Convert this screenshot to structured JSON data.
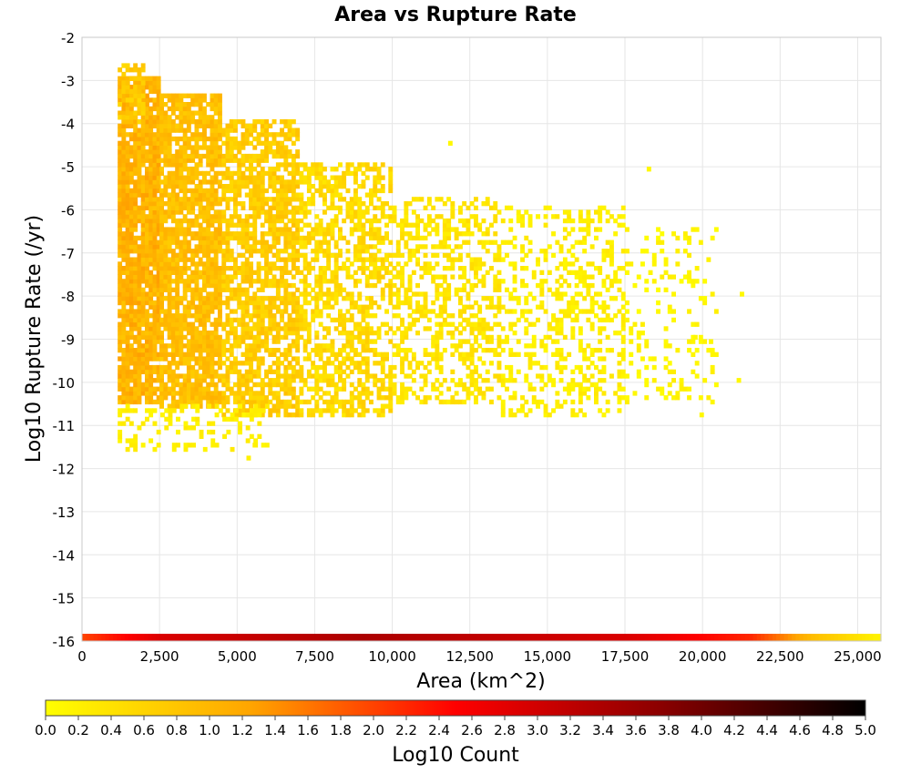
{
  "chart_data": {
    "type": "heatmap",
    "title": "Area vs Rupture Rate",
    "xlabel": "Area (km^2)",
    "ylabel": "Log10 Rupture Rate (/yr)",
    "xlim": [
      0,
      25750
    ],
    "ylim": [
      -16,
      -2
    ],
    "x_ticks": [
      "0",
      "2,500",
      "5,000",
      "7,500",
      "10,000",
      "12,500",
      "15,000",
      "17,500",
      "20,000",
      "22,500",
      "25,000"
    ],
    "x_tick_values": [
      0,
      2500,
      5000,
      7500,
      10000,
      12500,
      15000,
      17500,
      20000,
      22500,
      25000
    ],
    "y_ticks": [
      "-2",
      "-3",
      "-4",
      "-5",
      "-6",
      "-7",
      "-8",
      "-9",
      "-10",
      "-11",
      "-12",
      "-13",
      "-14",
      "-15",
      "-16"
    ],
    "y_tick_values": [
      -2,
      -3,
      -4,
      -5,
      -6,
      -7,
      -8,
      -9,
      -10,
      -11,
      -12,
      -13,
      -14,
      -15,
      -16
    ],
    "grid": true,
    "colorbar": {
      "label": "Log10 Count",
      "range": [
        0.0,
        5.0
      ],
      "ticks": [
        "0.0",
        "0.2",
        "0.4",
        "0.6",
        "0.8",
        "1.0",
        "1.2",
        "1.4",
        "1.6",
        "1.8",
        "2.0",
        "2.2",
        "2.4",
        "2.6",
        "2.8",
        "3.0",
        "3.2",
        "3.4",
        "3.6",
        "3.8",
        "4.0",
        "4.2",
        "4.4",
        "4.6",
        "4.8",
        "5.0"
      ],
      "colors": [
        "#ffff00",
        "#ffa500",
        "#ff0000",
        "#8b0000",
        "#000000"
      ]
    },
    "bin_width_x": 125,
    "bin_height_y": 0.1,
    "regions": [
      {
        "x": [
          1150,
          2500
        ],
        "y": [
          -10.5,
          -3.0
        ],
        "log10_count": [
          0.8,
          1.3
        ],
        "density": 0.9
      },
      {
        "x": [
          1150,
          2000
        ],
        "y": [
          -4.0,
          -2.6
        ],
        "log10_count": [
          0.5,
          0.9
        ],
        "density": 0.55
      },
      {
        "x": [
          2500,
          4500
        ],
        "y": [
          -10.6,
          -3.4
        ],
        "log10_count": [
          0.7,
          1.1
        ],
        "density": 0.82
      },
      {
        "x": [
          4500,
          7000
        ],
        "y": [
          -10.8,
          -4.0
        ],
        "log10_count": [
          0.5,
          0.9
        ],
        "density": 0.7
      },
      {
        "x": [
          7000,
          10000
        ],
        "y": [
          -10.8,
          -5.0
        ],
        "log10_count": [
          0.3,
          0.7
        ],
        "density": 0.55
      },
      {
        "x": [
          10000,
          13500
        ],
        "y": [
          -10.5,
          -5.8
        ],
        "log10_count": [
          0.2,
          0.5
        ],
        "density": 0.42
      },
      {
        "x": [
          13500,
          17500
        ],
        "y": [
          -10.8,
          -6.0
        ],
        "log10_count": [
          0.1,
          0.35
        ],
        "density": 0.3
      },
      {
        "x": [
          17500,
          20500
        ],
        "y": [
          -10.5,
          -6.5
        ],
        "log10_count": [
          0.0,
          0.25
        ],
        "density": 0.14
      },
      {
        "x": [
          1150,
          6000
        ],
        "y": [
          -11.6,
          -10.6
        ],
        "log10_count": [
          0.1,
          0.3
        ],
        "density": 0.3
      }
    ],
    "cells": [
      {
        "x": 5300,
        "y": -11.8,
        "log10_count": 0.2
      },
      {
        "x": 5500,
        "y": -11.5,
        "log10_count": 0.2
      },
      {
        "x": 11800,
        "y": -4.5,
        "log10_count": 0.1
      },
      {
        "x": 18200,
        "y": -5.1,
        "log10_count": 0.1
      },
      {
        "x": 21200,
        "y": -8.0,
        "log10_count": 0.1
      },
      {
        "x": 21100,
        "y": -10.0,
        "log10_count": 0.1
      },
      {
        "x": 19900,
        "y": -10.8,
        "log10_count": 0.1
      },
      {
        "x": 20200,
        "y": -9.1,
        "log10_count": 0.1
      },
      {
        "x": 19700,
        "y": -9.0,
        "log10_count": 0.1
      }
    ],
    "bottom_row": {
      "y": -16.0,
      "x": [
        0,
        25750
      ],
      "log10_count_by_x": [
        [
          0,
          2.0
        ],
        [
          2500,
          2.9
        ],
        [
          9000,
          3.4
        ],
        [
          17500,
          2.9
        ],
        [
          21500,
          2.2
        ],
        [
          23500,
          0.9
        ],
        [
          25500,
          0.2
        ]
      ]
    }
  }
}
